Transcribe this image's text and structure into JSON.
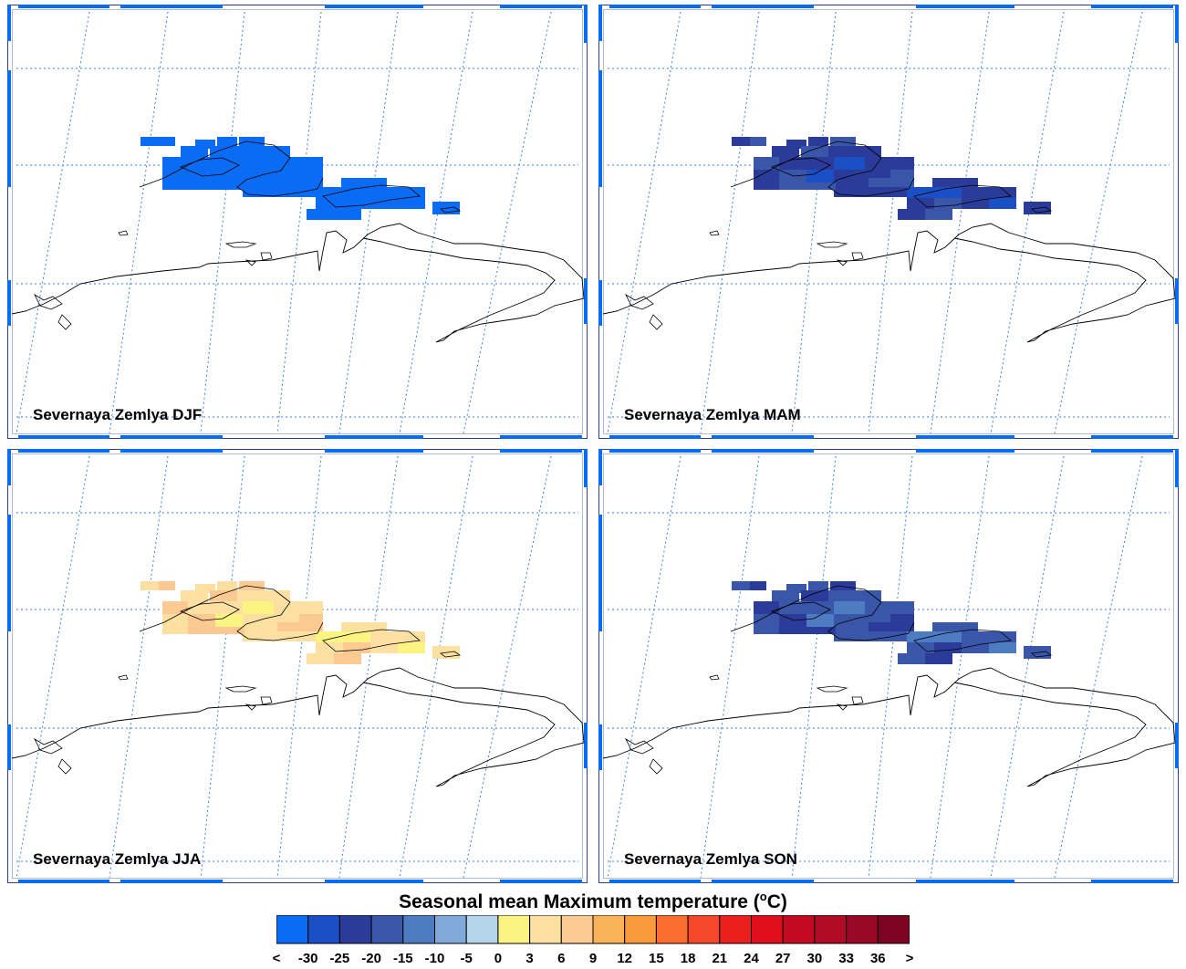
{
  "panels": [
    {
      "label": "Severnaya Zemlya DJF",
      "season": "DJF",
      "bin": 0
    },
    {
      "label": "Severnaya Zemlya MAM",
      "season": "MAM",
      "bin": 2
    },
    {
      "label": "Severnaya Zemlya JJA",
      "season": "JJA",
      "bin": 8
    },
    {
      "label": "Severnaya Zemlya SON",
      "season": "SON",
      "bin": 3
    }
  ],
  "legend": {
    "title_main": "Seasonal mean Maximum temperature (",
    "title_sup": "o",
    "title_end": "C)",
    "tick_labels": [
      "<",
      "-30",
      "-25",
      "-20",
      "-15",
      "-10",
      "-5",
      "0",
      "3",
      "6",
      "9",
      "12",
      "15",
      "18",
      "21",
      "24",
      "27",
      "30",
      "33",
      "36",
      ">"
    ],
    "colors": [
      "#0a6cf5",
      "#1a4fc6",
      "#2b3b9a",
      "#3a56a8",
      "#4e7cc2",
      "#7fa9d8",
      "#b5d6ea",
      "#fbf382",
      "#fbe0a2",
      "#fbc992",
      "#fbb35a",
      "#fb9a3a",
      "#fb6e2e",
      "#f5472a",
      "#ec1e1e",
      "#e00e18",
      "#c40a22",
      "#b00a24",
      "#9a0828",
      "#7d0423"
    ]
  },
  "colors": {
    "frame_blue": "#0a6cf5",
    "grid_blue": "#3b7fe0",
    "coastline": "#000000"
  }
}
